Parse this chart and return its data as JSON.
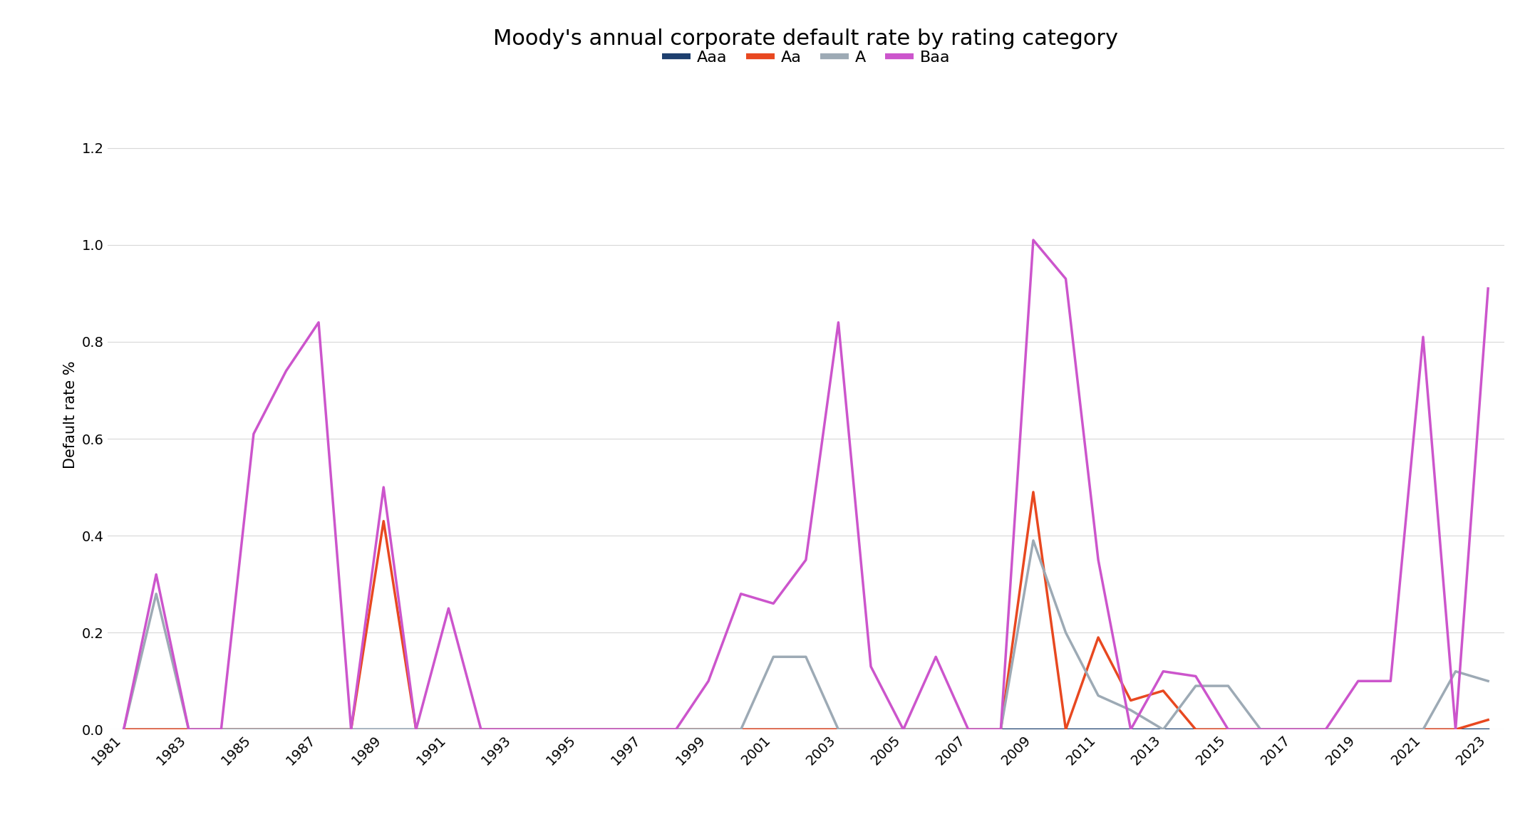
{
  "title": "Moody's annual corporate default rate by rating category",
  "ylabel": "Default rate %",
  "years": [
    1981,
    1982,
    1983,
    1984,
    1985,
    1986,
    1987,
    1988,
    1989,
    1990,
    1991,
    1992,
    1993,
    1994,
    1995,
    1996,
    1997,
    1998,
    1999,
    2000,
    2001,
    2002,
    2003,
    2004,
    2005,
    2006,
    2007,
    2008,
    2009,
    2010,
    2011,
    2012,
    2013,
    2014,
    2015,
    2016,
    2017,
    2018,
    2019,
    2020,
    2021,
    2022,
    2023
  ],
  "Aaa": [
    0,
    0,
    0,
    0,
    0,
    0,
    0,
    0,
    0,
    0,
    0,
    0,
    0,
    0,
    0,
    0,
    0,
    0,
    0,
    0,
    0,
    0,
    0,
    0,
    0,
    0,
    0,
    0,
    0,
    0,
    0,
    0,
    0,
    0,
    0,
    0,
    0,
    0,
    0,
    0,
    0,
    0,
    0
  ],
  "Aa": [
    0,
    0,
    0,
    0,
    0,
    0,
    0,
    0,
    0.43,
    0,
    0,
    0,
    0,
    0,
    0,
    0,
    0,
    0,
    0,
    0,
    0,
    0,
    0,
    0,
    0,
    0,
    0,
    0,
    0.49,
    0,
    0.19,
    0.06,
    0.08,
    0,
    0,
    0,
    0,
    0,
    0,
    0,
    0,
    0,
    0.02
  ],
  "A": [
    0,
    0.28,
    0,
    0,
    0,
    0,
    0,
    0,
    0,
    0,
    0,
    0,
    0,
    0,
    0,
    0,
    0,
    0,
    0,
    0,
    0.15,
    0.15,
    0,
    0,
    0,
    0,
    0,
    0,
    0.39,
    0.2,
    0.07,
    0.04,
    0,
    0.09,
    0.09,
    0,
    0,
    0,
    0,
    0,
    0,
    0.12,
    0.1
  ],
  "Baa": [
    0,
    0.32,
    0,
    0,
    0.61,
    0.74,
    0.84,
    0,
    0.5,
    0,
    0.25,
    0,
    0,
    0,
    0,
    0,
    0,
    0,
    0.1,
    0.28,
    0.26,
    0.35,
    0.84,
    0.13,
    0,
    0.15,
    0,
    0,
    1.01,
    0.93,
    0.35,
    0,
    0.12,
    0.11,
    0,
    0,
    0,
    0,
    0.1,
    0.1,
    0.81,
    0,
    0.91
  ],
  "colors": {
    "Aaa": "#1d3f6e",
    "Aa": "#e84820",
    "A": "#9daab5",
    "Baa": "#cc55cc"
  },
  "legend_labels": [
    "Aaa",
    "Aa",
    "A",
    "Baa"
  ],
  "ylim": [
    0,
    1.3
  ],
  "yticks": [
    0.0,
    0.2,
    0.4,
    0.6,
    0.8,
    1.0,
    1.2
  ],
  "background_color": "#ffffff",
  "grid_color": "#d8d8d8",
  "title_fontsize": 22,
  "label_fontsize": 15,
  "tick_fontsize": 14,
  "legend_fontsize": 16,
  "linewidth": 2.5
}
